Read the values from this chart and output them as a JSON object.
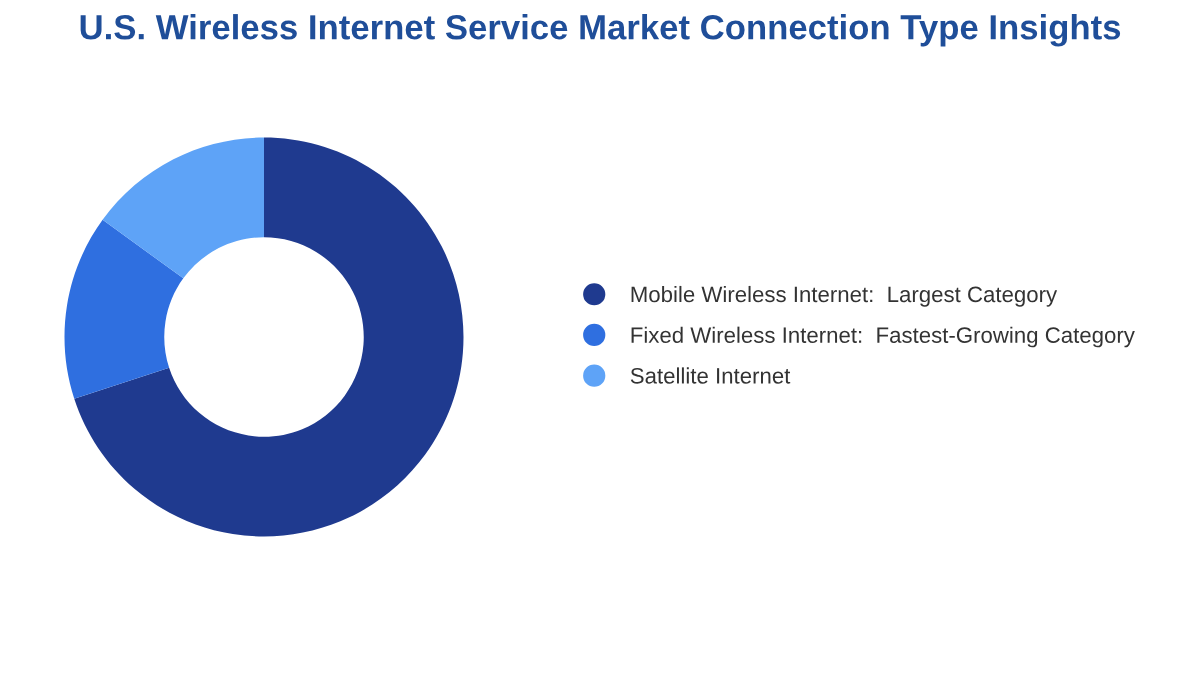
{
  "chart_data": {
    "type": "donut",
    "title": "U.S. Wireless Internet Service Market Connection Type Insights",
    "categories": [
      "Mobile Wireless Internet:  Largest Category",
      "Fixed Wireless Internet:  Fastest-Growing Category",
      "Satellite Internet"
    ],
    "values": [
      70,
      15,
      15
    ],
    "colors": [
      "#1f3a8f",
      "#2f6fe0",
      "#5ea3f7"
    ],
    "legend": "right"
  }
}
